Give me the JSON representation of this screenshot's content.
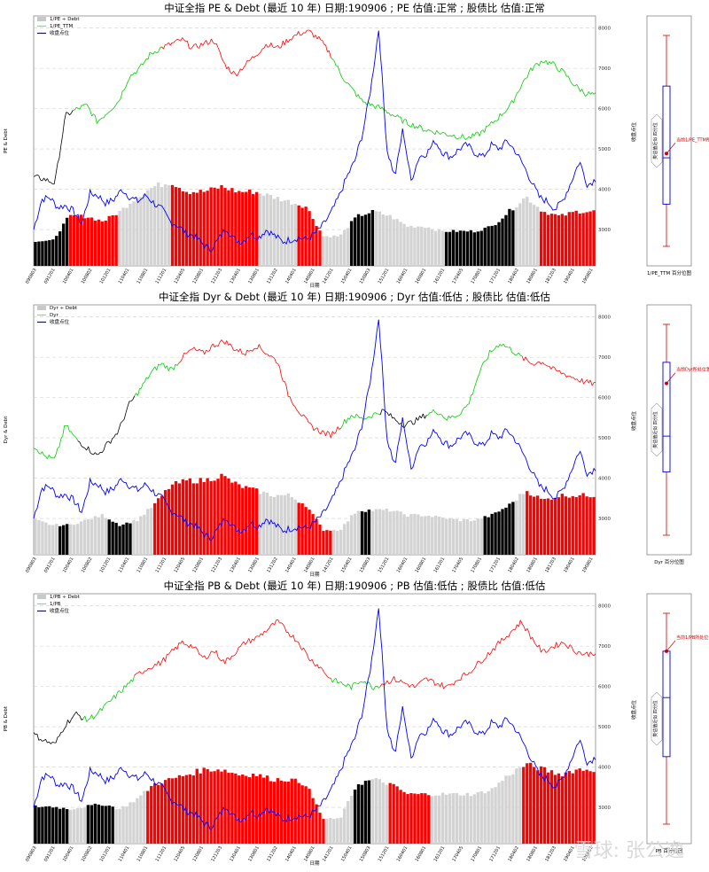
{
  "chart_data": [
    {
      "type": "bar+line",
      "title": "中证全指 PE & Debt (最近 10 年) 日期:190906 ; PE 估值:正常 ; 股债比 估值:正常",
      "ylabel": "PE & Debt",
      "ylabel_right": "收盘点位",
      "xlabel": "日期",
      "legend": [
        "1/PE ÷ Debt",
        "1/PE_TTM",
        "收盘点位"
      ],
      "right_ticks": [
        "3000",
        "4000",
        "5000",
        "6000",
        "7000",
        "8000"
      ],
      "box_title": "1/PE_TTM 百分位图",
      "box_side_label": "类估值近似 四分位",
      "box_annotation": "当前1/PE_TTM所处位置",
      "box": {
        "min": 0,
        "q1": 0.2,
        "median": 0.42,
        "q3": 0.76,
        "max": 1.0,
        "current": 0.44
      }
    },
    {
      "type": "bar+line",
      "title": "中证全指 Dyr & Debt (最近 10 年) 日期:190906 ; Dyr 估值:低估 ; 股债比 估值:低估",
      "ylabel": "Dyr & Debt",
      "ylabel_right": "收盘点位",
      "xlabel": "日期",
      "legend": [
        "Dyr ÷ Debt",
        "Dyr",
        "收盘点位"
      ],
      "right_ticks": [
        "3000",
        "4000",
        "5000",
        "6000",
        "7000",
        "8000"
      ],
      "box_title": "Dyr 百分位图",
      "box_side_label": "类估值近似 四分位",
      "box_annotation": "当前Dyr所处位置",
      "box": {
        "min": 0,
        "q1": 0.3,
        "median": 0.47,
        "q3": 0.82,
        "max": 1.0,
        "current": 0.72
      }
    },
    {
      "type": "bar+line",
      "title": "中证全指 PB & Debt (最近 10 年) 日期:190906 ; PB 估值:低估 ; 股债比 估值:低估",
      "ylabel": "PB & Debt",
      "ylabel_right": "收盘点位",
      "xlabel": "日期",
      "legend": [
        "1/PB ÷ Debt",
        "1/PB",
        "收盘点位"
      ],
      "right_ticks": [
        "3000",
        "4000",
        "5000",
        "6000",
        "7000",
        "8000"
      ],
      "box_title": "PB 百分位图",
      "box_side_label": "类估值近似 四分位",
      "box_annotation": "当前1/PB所处位置",
      "box": {
        "min": 0,
        "q1": 0.32,
        "median": 0.6,
        "q3": 0.82,
        "max": 1.0,
        "current": 0.82
      }
    }
  ],
  "x_ticks": [
    "090803",
    "091201",
    "100401",
    "100802",
    "101201",
    "110401",
    "110801",
    "111201",
    "120405",
    "120801",
    "121203",
    "130401",
    "130801",
    "131202",
    "140401",
    "140801",
    "141201",
    "150401",
    "150803",
    "151201",
    "160401",
    "160801",
    "161201",
    "170405",
    "170801",
    "171201",
    "180402",
    "180801",
    "181203",
    "190401",
    "190801"
  ],
  "close_index": [
    3000,
    3750,
    3800,
    3550,
    3600,
    3450,
    3150,
    3900,
    3850,
    3650,
    3750,
    4000,
    3800,
    3700,
    3850,
    3650,
    3500,
    3200,
    3100,
    2900,
    2850,
    2650,
    2500,
    2750,
    3050,
    2750,
    2700,
    2900,
    2800,
    3000,
    2850,
    2700,
    2750,
    2800,
    2750,
    2900,
    3100,
    3400,
    3800,
    4300,
    4700,
    5400,
    6500,
    8000,
    5000,
    4300,
    5500,
    4200,
    4800,
    4900,
    5200,
    4900,
    4800,
    5000,
    5100,
    4900,
    4800,
    5100,
    5000,
    5200,
    4950,
    4600,
    4200,
    3800,
    3700,
    3500,
    3750,
    4200,
    4700,
    4100,
    4250
  ],
  "series_colors": {
    "cheap": "#ff0000",
    "normal": "#00cc00",
    "expensive": "#000000",
    "index": "#0000ff",
    "bar_neutral": "#d3d3d3"
  },
  "watermark": "雪球: 张公逸"
}
